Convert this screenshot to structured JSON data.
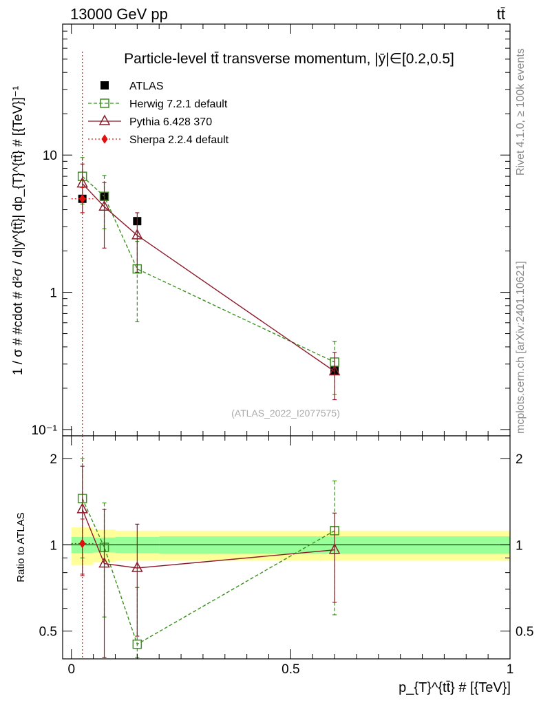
{
  "header": {
    "left": "13000 GeV pp",
    "right": "tt̄"
  },
  "side_labels": {
    "rivet": "Rivet 4.1.0, ≥ 100k events",
    "mcplots": "mcplots.cern.ch [arXiv:2401.10621]"
  },
  "watermark": "(ATLAS_2022_I2077575)",
  "chart_data": {
    "type": "scatter",
    "title": "Particle-level tt̄ transverse momentum, |ȳ|∈[0.2,0.5]",
    "xlabel": "p_{T}^{tt̄} # [{TeV}]",
    "ylabel": "1 / σ # #cdot # d²σ / d|y^{tt̄}| dp_{T}^{tt̄} # [{TeV}]⁻¹",
    "ratio_ylabel": "Ratio to ATLAS",
    "xlim": [
      -0.02,
      1.0
    ],
    "ylim_main": [
      0.09,
      90
    ],
    "ylim_ratio": [
      0.4,
      2.4
    ],
    "main_yticks": [
      {
        "v": 10,
        "label": "10"
      },
      {
        "v": 1,
        "label": "1"
      },
      {
        "v": 0.1,
        "label": "10⁻¹"
      }
    ],
    "ratio_yticks": [
      {
        "v": 2,
        "label": "2"
      },
      {
        "v": 1,
        "label": "1"
      },
      {
        "v": 0.5,
        "label": "0.5"
      }
    ],
    "xticks": [
      {
        "v": 0,
        "label": "0"
      },
      {
        "v": 0.5,
        "label": "0.5"
      },
      {
        "v": 1,
        "label": "1"
      }
    ],
    "bins": [
      [
        0.0,
        0.05
      ],
      [
        0.05,
        0.1
      ],
      [
        0.1,
        0.2
      ],
      [
        0.2,
        1.0
      ]
    ],
    "x": [
      0.025,
      0.075,
      0.15,
      0.6
    ],
    "data": {
      "name": "ATLAS",
      "values": [
        4.8,
        5.0,
        3.3,
        0.27
      ],
      "band_inner": [
        0.065,
        0.06,
        0.065,
        0.07
      ],
      "band_outer": [
        0.15,
        0.13,
        0.12,
        0.12
      ]
    },
    "series": [
      {
        "name": "Herwig 7.2.1 default",
        "color": "#3a8f1e",
        "marker": "square",
        "values": [
          7.0,
          5.0,
          1.48,
          0.31
        ],
        "err": [
          2.6,
          2.1,
          0.87,
          0.13
        ],
        "ratio": [
          1.45,
          0.98,
          0.45,
          1.12
        ],
        "ratio_err": [
          0.55,
          0.42,
          0.26,
          0.55
        ]
      },
      {
        "name": "Pythia 6.428 370",
        "color": "#8b1a2a",
        "marker": "triangle",
        "values": [
          6.2,
          4.2,
          2.6,
          0.265
        ],
        "err": [
          2.4,
          2.1,
          1.2,
          0.1
        ],
        "ratio": [
          1.33,
          0.86,
          0.83,
          0.96
        ],
        "ratio_err": [
          0.55,
          0.47,
          0.35,
          0.33
        ]
      },
      {
        "name": "Sherpa 2.2.4 default",
        "color": "#e01010",
        "marker": "diamond",
        "values": [
          4.8
        ],
        "err": [
          1.0
        ],
        "ratio": [
          1.01
        ],
        "ratio_err": [
          0.22
        ],
        "xrange": [
          0.0,
          0.05
        ],
        "vline": 0.025
      }
    ],
    "legend": "top-left"
  }
}
